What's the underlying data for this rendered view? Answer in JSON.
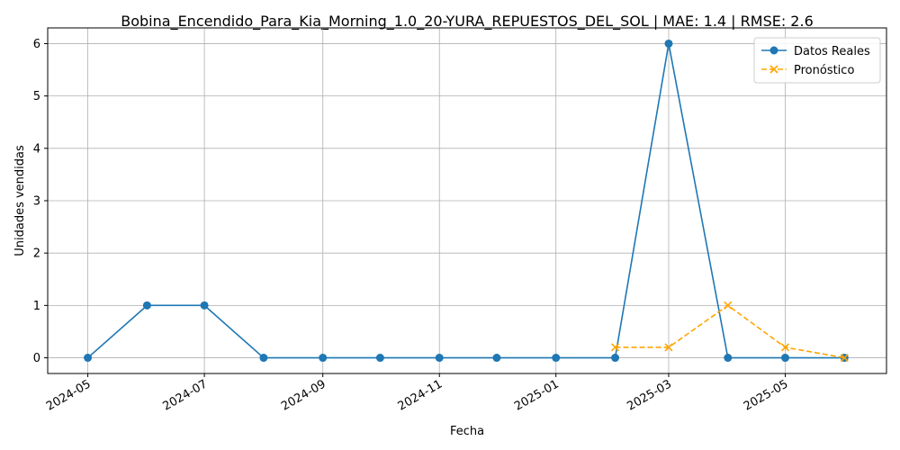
{
  "chart_data": {
    "type": "line",
    "title": "Bobina_Encendido_Para_Kia_Morning_1.0_20-YURA_REPUESTOS_DEL_SOL | MAE: 1.4 | RMSE: 2.6",
    "xlabel": "Fecha",
    "ylabel": "Unidades vendidas",
    "x_ticks": [
      "2024-05",
      "2024-07",
      "2024-09",
      "2024-11",
      "2025-01",
      "2025-03",
      "2025-05"
    ],
    "y_ticks": [
      "0",
      "1",
      "2",
      "3",
      "4",
      "5",
      "6"
    ],
    "ylim": [
      -0.3,
      6.3
    ],
    "xlim": [
      "2024-04-10",
      "2025-06-23"
    ],
    "grid": true,
    "legend_position": "top-right",
    "series": [
      {
        "name": "Datos Reales",
        "color": "#1f77b4",
        "line_style": "solid",
        "marker": "circle",
        "x": [
          "2024-05-01",
          "2024-06-01",
          "2024-07-01",
          "2024-08-01",
          "2024-09-01",
          "2024-10-01",
          "2024-11-01",
          "2024-12-01",
          "2025-01-01",
          "2025-02-01",
          "2025-03-01",
          "2025-04-01",
          "2025-05-01",
          "2025-06-01"
        ],
        "values": [
          0,
          1,
          1,
          0,
          0,
          0,
          0,
          0,
          0,
          0,
          6,
          0,
          0,
          0
        ]
      },
      {
        "name": "Pronóstico",
        "color": "#ffa500",
        "line_style": "dashed",
        "marker": "x",
        "x": [
          "2025-02-01",
          "2025-03-01",
          "2025-04-01",
          "2025-05-01",
          "2025-06-01"
        ],
        "values": [
          0.2,
          0.2,
          1.0,
          0.2,
          0.0
        ]
      }
    ]
  }
}
